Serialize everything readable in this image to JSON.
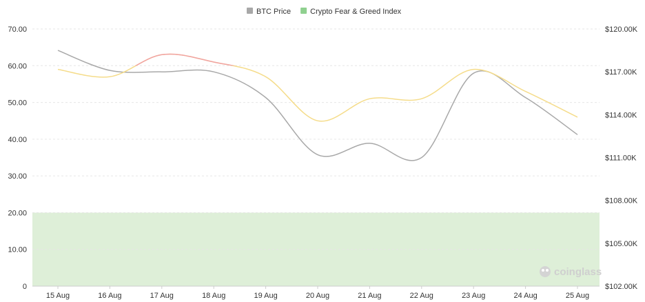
{
  "chart_data": {
    "type": "line",
    "categories": [
      "15 Aug",
      "16 Aug",
      "17 Aug",
      "18 Aug",
      "19 Aug",
      "20 Aug",
      "21 Aug",
      "22 Aug",
      "23 Aug",
      "24 Aug",
      "25 Aug"
    ],
    "series": [
      {
        "name": "BTC Price",
        "axis": "right",
        "color": "#a8a8a8",
        "values": [
          118500,
          117100,
          117000,
          117000,
          115200,
          111200,
          112000,
          111000,
          116900,
          115200,
          112600
        ]
      },
      {
        "name": "Crypto Fear & Greed Index",
        "axis": "left",
        "color": "#f5dc8a",
        "values": [
          59,
          57,
          63,
          61,
          57,
          45,
          51,
          51,
          59,
          53,
          46
        ]
      }
    ],
    "y_left": {
      "min": 0,
      "max": 70,
      "ticks": [
        "70.00",
        "60.00",
        "50.00",
        "40.00",
        "30.00",
        "20.00",
        "10.00",
        "0"
      ]
    },
    "y_right": {
      "min": 102000,
      "max": 120000,
      "ticks": [
        "$120.00K",
        "$117.00K",
        "$114.00K",
        "$111.00K",
        "$108.00K",
        "$105.00K",
        "$102.00K"
      ]
    },
    "bands": [
      {
        "from": 0,
        "to": 20,
        "color": "#deefd8"
      },
      {
        "from": 60,
        "to": 100,
        "color": "#f1a3a3"
      }
    ],
    "grid": true,
    "legend": {
      "position": "top-center",
      "items": [
        {
          "label": "BTC Price",
          "color": "#a8a8a8"
        },
        {
          "label": "Crypto Fear & Greed Index",
          "color": "#8fd08f"
        }
      ]
    },
    "watermark": "coinglass"
  }
}
